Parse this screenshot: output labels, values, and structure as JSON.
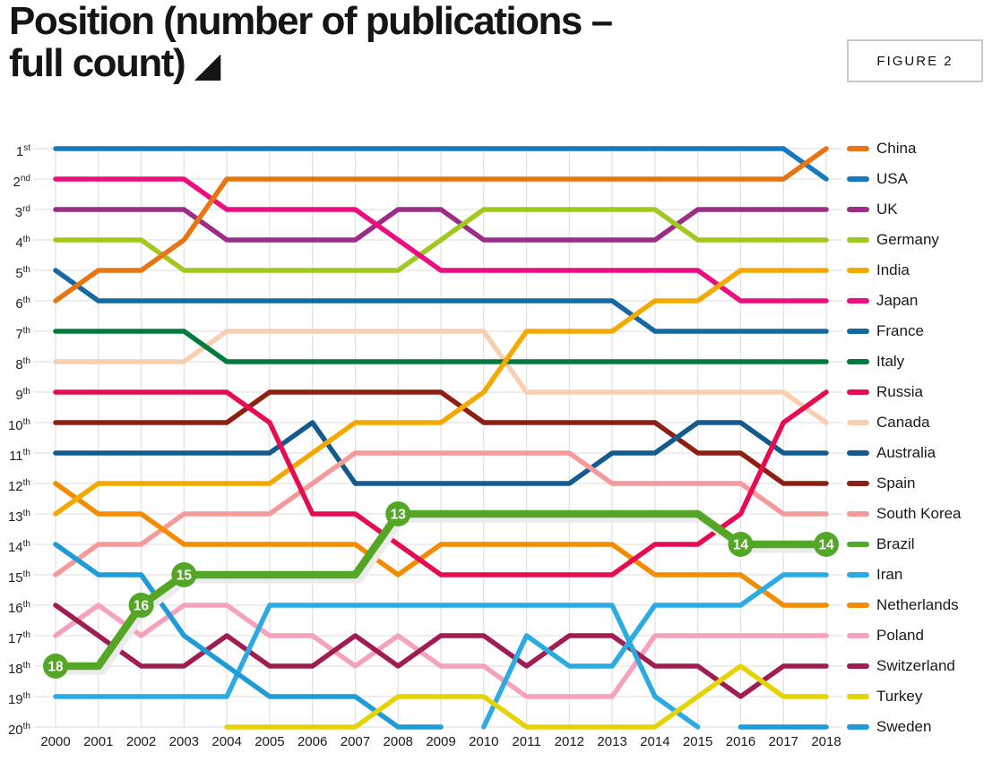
{
  "title": {
    "line1": "Position (number of publications –",
    "line2": "full count)",
    "triangle_icon": "◢"
  },
  "figure_label": "FIGURE 2",
  "chart_data": {
    "type": "line",
    "subtype": "bump-rank-chart",
    "x": [
      2000,
      2001,
      2002,
      2003,
      2004,
      2005,
      2006,
      2007,
      2008,
      2009,
      2010,
      2011,
      2012,
      2013,
      2014,
      2015,
      2016,
      2017,
      2018
    ],
    "y_axis": {
      "labels": [
        "1st",
        "2nd",
        "3rd",
        "4th",
        "5th",
        "6th",
        "7th",
        "8th",
        "9th",
        "10th",
        "11th",
        "12th",
        "13th",
        "14th",
        "15th",
        "16th",
        "17th",
        "18th",
        "19th",
        "20th"
      ],
      "range": [
        1,
        20
      ],
      "inverted": true
    },
    "grid": true,
    "legend_position": "right",
    "series": [
      {
        "name": "China",
        "color": "#e87511",
        "z": 20,
        "values": [
          6,
          5,
          5,
          4,
          2,
          2,
          2,
          2,
          2,
          2,
          2,
          2,
          2,
          2,
          2,
          2,
          2,
          2,
          1
        ]
      },
      {
        "name": "USA",
        "color": "#1779c0",
        "z": 2,
        "values": [
          1,
          1,
          1,
          1,
          1,
          1,
          1,
          1,
          1,
          1,
          1,
          1,
          1,
          1,
          1,
          1,
          1,
          1,
          2
        ]
      },
      {
        "name": "UK",
        "color": "#9b2d86",
        "z": 5,
        "values": [
          3,
          3,
          3,
          3,
          4,
          4,
          4,
          4,
          3,
          3,
          4,
          4,
          4,
          4,
          4,
          3,
          3,
          3,
          3
        ]
      },
      {
        "name": "Germany",
        "color": "#a0c81e",
        "z": 6,
        "values": [
          4,
          4,
          4,
          5,
          5,
          5,
          5,
          5,
          5,
          4,
          3,
          3,
          3,
          3,
          3,
          4,
          4,
          4,
          4
        ]
      },
      {
        "name": "India",
        "color": "#f3a900",
        "z": 18,
        "values": [
          13,
          12,
          12,
          12,
          12,
          12,
          11,
          10,
          10,
          10,
          9,
          7,
          7,
          7,
          6,
          6,
          5,
          5,
          5
        ]
      },
      {
        "name": "Japan",
        "color": "#ec0d7e",
        "z": 7,
        "values": [
          2,
          2,
          2,
          2,
          3,
          3,
          3,
          3,
          4,
          5,
          5,
          5,
          5,
          5,
          5,
          5,
          6,
          6,
          6
        ]
      },
      {
        "name": "France",
        "color": "#14699f",
        "z": 3,
        "values": [
          5,
          6,
          6,
          6,
          6,
          6,
          6,
          6,
          6,
          6,
          6,
          6,
          6,
          6,
          7,
          7,
          7,
          7,
          7
        ]
      },
      {
        "name": "Italy",
        "color": "#007a3d",
        "z": 4,
        "values": [
          7,
          7,
          7,
          7,
          8,
          8,
          8,
          8,
          8,
          8,
          8,
          8,
          8,
          8,
          8,
          8,
          8,
          8,
          8
        ]
      },
      {
        "name": "Russia",
        "color": "#e60c51",
        "z": 19,
        "values": [
          9,
          9,
          9,
          9,
          9,
          10,
          13,
          13,
          14,
          15,
          15,
          15,
          15,
          15,
          14,
          14,
          13,
          10,
          9
        ]
      },
      {
        "name": "Canada",
        "color": "#f9cfb2",
        "z": 1,
        "values": [
          8,
          8,
          8,
          8,
          7,
          7,
          7,
          7,
          7,
          7,
          7,
          9,
          9,
          9,
          9,
          9,
          9,
          9,
          10
        ]
      },
      {
        "name": "Australia",
        "color": "#135a8f",
        "z": 9,
        "values": [
          11,
          11,
          11,
          11,
          11,
          11,
          10,
          12,
          12,
          12,
          12,
          12,
          12,
          11,
          11,
          10,
          10,
          11,
          11
        ]
      },
      {
        "name": "Spain",
        "color": "#8e1f13",
        "z": 8,
        "values": [
          10,
          10,
          10,
          10,
          10,
          9,
          9,
          9,
          9,
          9,
          10,
          10,
          10,
          10,
          10,
          11,
          11,
          12,
          12
        ]
      },
      {
        "name": "South Korea",
        "color": "#f49a9a",
        "z": 10,
        "values": [
          15,
          14,
          14,
          13,
          13,
          13,
          12,
          11,
          11,
          11,
          11,
          11,
          11,
          12,
          12,
          12,
          12,
          13,
          13
        ]
      },
      {
        "name": "Brazil",
        "color": "#53a626",
        "z": 21,
        "highlight": true,
        "values": [
          18,
          18,
          16,
          15,
          15,
          15,
          15,
          15,
          13,
          13,
          13,
          13,
          13,
          13,
          13,
          13,
          14,
          14,
          14
        ]
      },
      {
        "name": "Iran",
        "color": "#2aabe2",
        "z": 16,
        "values": [
          null,
          null,
          null,
          null,
          null,
          null,
          null,
          null,
          null,
          null,
          20,
          17,
          18,
          18,
          16,
          16,
          16,
          15,
          15
        ]
      },
      {
        "name": "Netherlands",
        "color": "#f28c00",
        "z": 11,
        "values": [
          12,
          13,
          13,
          14,
          14,
          14,
          14,
          14,
          15,
          14,
          14,
          14,
          14,
          14,
          15,
          15,
          15,
          16,
          16
        ]
      },
      {
        "name": "Poland",
        "color": "#f5a2bd",
        "z": 12,
        "values": [
          17,
          16,
          17,
          16,
          16,
          17,
          17,
          18,
          17,
          18,
          18,
          19,
          19,
          19,
          17,
          17,
          17,
          17,
          17
        ]
      },
      {
        "name": "Switzerland",
        "color": "#a01d53",
        "z": 13,
        "values": [
          16,
          17,
          18,
          18,
          17,
          18,
          18,
          17,
          18,
          17,
          17,
          18,
          17,
          17,
          18,
          18,
          19,
          18,
          18
        ]
      },
      {
        "name": "Turkey",
        "color": "#e5d405",
        "z": 17,
        "values": [
          null,
          null,
          null,
          null,
          20,
          20,
          20,
          20,
          19,
          19,
          19,
          20,
          20,
          20,
          20,
          19,
          18,
          19,
          19
        ]
      },
      {
        "name": "Sweden",
        "color": "#1e9cd7",
        "z": 15,
        "values": [
          14,
          15,
          15,
          17,
          18,
          19,
          19,
          19,
          20,
          20,
          null,
          null,
          null,
          null,
          null,
          null,
          20,
          20,
          20
        ]
      },
      {
        "name": null,
        "color": "#2aabe2",
        "z": 14,
        "values": [
          19,
          19,
          19,
          19,
          19,
          16,
          16,
          16,
          16,
          16,
          16,
          16,
          16,
          16,
          19,
          20,
          null,
          null,
          null
        ]
      }
    ],
    "markers": [
      {
        "year": 2000,
        "rank": 18,
        "label": "18"
      },
      {
        "year": 2002,
        "rank": 16,
        "label": "16"
      },
      {
        "year": 2003,
        "rank": 15,
        "label": "15"
      },
      {
        "year": 2008,
        "rank": 13,
        "label": "13"
      },
      {
        "year": 2016,
        "rank": 14,
        "label": "14"
      },
      {
        "year": 2018,
        "rank": 14,
        "label": "14"
      }
    ]
  }
}
